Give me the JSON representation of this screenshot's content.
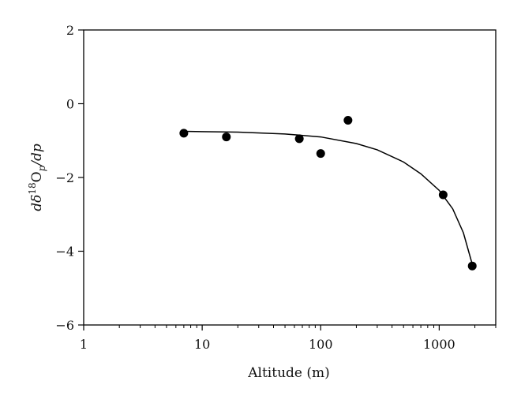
{
  "chart_data": {
    "type": "scatter",
    "title": "",
    "xlabel": "Altitude (m)",
    "ylabel": {
      "main": "dδ",
      "sup": "18",
      "mid": "O",
      "sub": "p",
      "tail": "/dp"
    },
    "x_scale": "log",
    "xlim": [
      1,
      3000
    ],
    "ylim": [
      -6,
      2
    ],
    "x_ticks": [
      {
        "value": 1,
        "label": "1"
      },
      {
        "value": 10,
        "label": "10"
      },
      {
        "value": 100,
        "label": "100"
      },
      {
        "value": 1000,
        "label": "1000"
      }
    ],
    "y_ticks": [
      {
        "value": 2,
        "label": "2"
      },
      {
        "value": 0,
        "label": "0"
      },
      {
        "value": -2,
        "label": "−2"
      },
      {
        "value": -4,
        "label": "−4"
      },
      {
        "value": -6,
        "label": "−6"
      }
    ],
    "grid": false,
    "series": [
      {
        "type": "scatter",
        "marker": "filled-circle",
        "color": "#000000",
        "points": [
          {
            "x": 7,
            "y": -0.8
          },
          {
            "x": 16,
            "y": -0.9
          },
          {
            "x": 66,
            "y": -0.95
          },
          {
            "x": 100,
            "y": -1.35
          },
          {
            "x": 170,
            "y": -0.45
          },
          {
            "x": 1080,
            "y": -2.47
          },
          {
            "x": 1900,
            "y": -4.4
          }
        ]
      },
      {
        "type": "line",
        "style": "fit-curve",
        "color": "#000000",
        "points": [
          {
            "x": 7,
            "y": -0.75
          },
          {
            "x": 20,
            "y": -0.77
          },
          {
            "x": 50,
            "y": -0.82
          },
          {
            "x": 100,
            "y": -0.9
          },
          {
            "x": 200,
            "y": -1.08
          },
          {
            "x": 300,
            "y": -1.25
          },
          {
            "x": 500,
            "y": -1.58
          },
          {
            "x": 700,
            "y": -1.9
          },
          {
            "x": 1000,
            "y": -2.35
          },
          {
            "x": 1300,
            "y": -2.85
          },
          {
            "x": 1600,
            "y": -3.5
          },
          {
            "x": 1900,
            "y": -4.35
          }
        ]
      }
    ]
  }
}
